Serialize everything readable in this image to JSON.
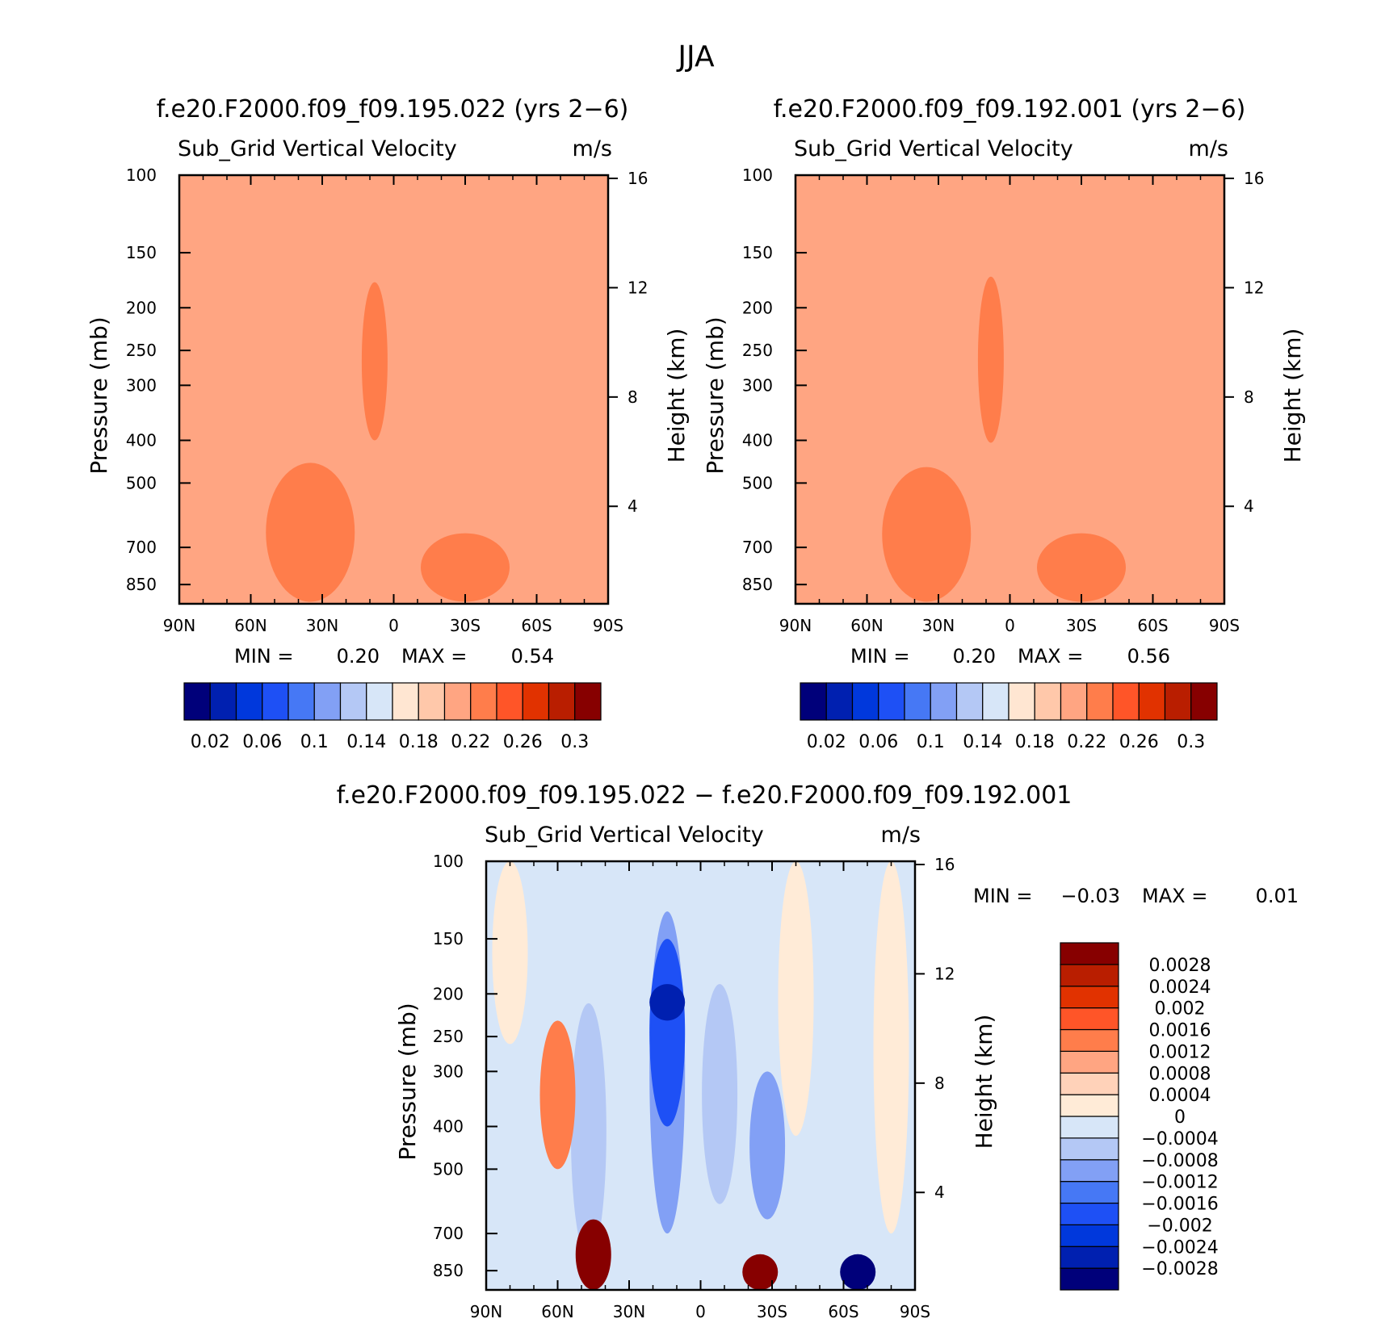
{
  "figure_title": "JJA",
  "colors": {
    "seq": [
      "#00007a",
      "#0020b0",
      "#0038dc",
      "#1e50f5",
      "#4678f5",
      "#82a0f5",
      "#b4c8f5",
      "#d7e6f8",
      "#ffe6d2",
      "#ffc8aa",
      "#ffa582",
      "#ff7d4b",
      "#ff5528",
      "#e13200",
      "#b91e00",
      "#870000"
    ],
    "diff": [
      "#00007a",
      "#0020b0",
      "#0038dc",
      "#1e50f5",
      "#4678f5",
      "#82a0f5",
      "#b4c8f5",
      "#d7e6f8",
      "#ffebd7",
      "#ffd2b9",
      "#ffa582",
      "#ff7d4b",
      "#ff5528",
      "#e13200",
      "#b91e00",
      "#870000"
    ]
  },
  "chart_data": [
    {
      "type": "heatmap",
      "title": "f.e20.F2000.f09_f09.195.022 (yrs 2−6)",
      "subtitle_left": "Sub_Grid Vertical Velocity",
      "subtitle_right": "m/s",
      "ylabel": "Pressure (mb)",
      "ylabel_right": "Height (km)",
      "x_ticks": [
        "90N",
        "60N",
        "30N",
        "0",
        "30S",
        "60S",
        "90S"
      ],
      "y_ticks": [
        "100",
        "150",
        "200",
        "250",
        "300",
        "400",
        "500",
        "700",
        "850"
      ],
      "y_ticks_right": [
        "16",
        "12",
        "8",
        "4"
      ],
      "min_label": "MIN =",
      "min_value": "0.20",
      "max_label": "MAX =",
      "max_value": "0.54",
      "colorbar_labels": [
        "0.02",
        "0.06",
        "0.1",
        "0.14",
        "0.18",
        "0.22",
        "0.26",
        "0.3"
      ],
      "background_level": 10,
      "features": [
        {
          "level": 11,
          "lat": 8,
          "pmin": 175,
          "pmax": 400
        },
        {
          "level": 11,
          "lat": 35,
          "pmin": 450,
          "pmax": 930
        },
        {
          "level": 11,
          "lat": -30,
          "pmin": 650,
          "pmax": 930
        }
      ]
    },
    {
      "type": "heatmap",
      "title": "f.e20.F2000.f09_f09.192.001 (yrs 2−6)",
      "subtitle_left": "Sub_Grid Vertical Velocity",
      "subtitle_right": "m/s",
      "ylabel": "Pressure (mb)",
      "ylabel_right": "Height (km)",
      "x_ticks": [
        "90N",
        "60N",
        "30N",
        "0",
        "30S",
        "60S",
        "90S"
      ],
      "y_ticks": [
        "100",
        "150",
        "200",
        "250",
        "300",
        "400",
        "500",
        "700",
        "850"
      ],
      "y_ticks_right": [
        "16",
        "12",
        "8",
        "4"
      ],
      "min_label": "MIN =",
      "min_value": "0.20",
      "max_label": "MAX =",
      "max_value": "0.56",
      "colorbar_labels": [
        "0.02",
        "0.06",
        "0.1",
        "0.14",
        "0.18",
        "0.22",
        "0.26",
        "0.3"
      ],
      "background_level": 10,
      "features": [
        {
          "level": 11,
          "lat": 8,
          "pmin": 170,
          "pmax": 405
        },
        {
          "level": 11,
          "lat": 35,
          "pmin": 460,
          "pmax": 930
        },
        {
          "level": 11,
          "lat": -30,
          "pmin": 650,
          "pmax": 930
        }
      ]
    },
    {
      "type": "heatmap",
      "title": "f.e20.F2000.f09_f09.195.022 − f.e20.F2000.f09_f09.192.001",
      "subtitle_left": "Sub_Grid Vertical Velocity",
      "subtitle_right": "m/s",
      "ylabel": "Pressure (mb)",
      "ylabel_right": "Height (km)",
      "x_ticks": [
        "90N",
        "60N",
        "30N",
        "0",
        "30S",
        "60S",
        "90S"
      ],
      "y_ticks": [
        "100",
        "150",
        "200",
        "250",
        "300",
        "400",
        "500",
        "700",
        "850"
      ],
      "y_ticks_right": [
        "16",
        "12",
        "8",
        "4"
      ],
      "min_label": "MIN =",
      "min_value": "−0.03",
      "max_label": "MAX =",
      "max_value": "0.01",
      "colorbar_labels": [
        "0.0028",
        "0.0024",
        "0.002",
        "0.0016",
        "0.0012",
        "0.0008",
        "0.0004",
        "0",
        "−0.0004",
        "−0.0008",
        "−0.0012",
        "−0.0016",
        "−0.002",
        "−0.0024",
        "−0.0028"
      ],
      "background_level": 7,
      "features": [
        {
          "level": 5,
          "lat": 14,
          "pmin": 130,
          "pmax": 700
        },
        {
          "level": 3,
          "lat": 14,
          "pmin": 150,
          "pmax": 400
        },
        {
          "level": 1,
          "lat": 14,
          "pmin": 190,
          "pmax": 230
        },
        {
          "level": 6,
          "lat": -8,
          "pmin": 190,
          "pmax": 600
        },
        {
          "level": 5,
          "lat": -28,
          "pmin": 300,
          "pmax": 650
        },
        {
          "level": 6,
          "lat": 47,
          "pmin": 210,
          "pmax": 800
        },
        {
          "level": 11,
          "lat": 60,
          "pmin": 230,
          "pmax": 500
        },
        {
          "level": 15,
          "lat": 45,
          "pmin": 650,
          "pmax": 940
        },
        {
          "level": 15,
          "lat": -25,
          "pmin": 780,
          "pmax": 940
        },
        {
          "level": 0,
          "lat": -66,
          "pmin": 780,
          "pmax": 940
        },
        {
          "level": 8,
          "lat": 80,
          "pmin": 100,
          "pmax": 260
        },
        {
          "level": 8,
          "lat": -40,
          "pmin": 100,
          "pmax": 420
        },
        {
          "level": 8,
          "lat": -80,
          "pmin": 100,
          "pmax": 700
        }
      ]
    }
  ]
}
